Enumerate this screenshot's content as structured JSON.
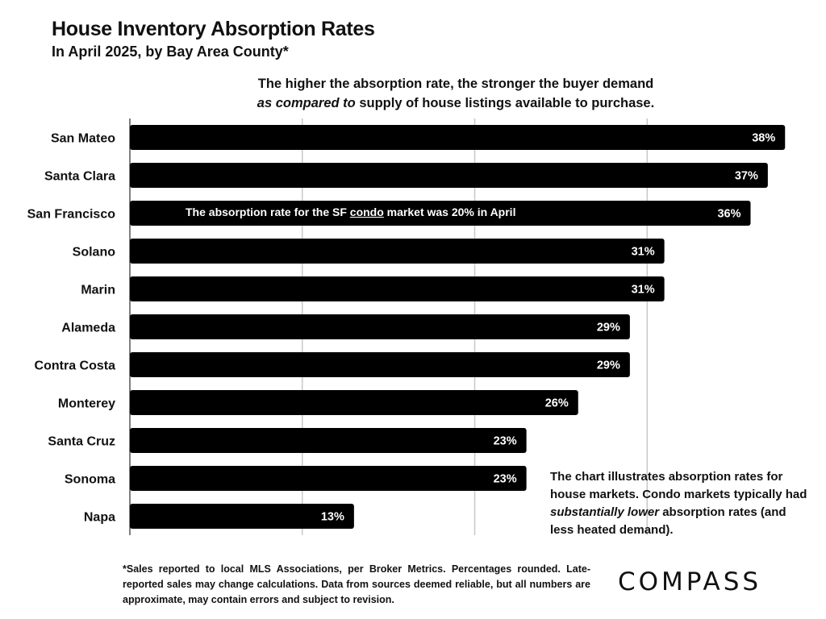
{
  "header": {
    "title": "House Inventory Absorption Rates",
    "subtitle": "In April 2025, by Bay Area County*",
    "note_line1": "The higher the absorption rate, the stronger the buyer demand",
    "note_line2_em": "as compared to",
    "note_line2_rest": " supply of house listings available to purchase."
  },
  "annotations": {
    "sf_pre": "The absorption rate for the SF ",
    "sf_underlined": "condo",
    "sf_post": " market was 20% in April",
    "side_pre": "The chart illustrates absorption rates for house markets. Condo markets typically had ",
    "side_em": "substantially lower",
    "side_post": " absorption rates (and less heated demand)."
  },
  "footnote": "*Sales reported to local MLS Associations, per Broker Metrics. Percentages rounded. Late-reported sales may change calculations. Data from sources deemed reliable, but all numbers are approximate, may contain errors and subject to revision.",
  "logo": "COMPASS",
  "colors": {
    "bar": "#000000",
    "grid": "#c8c8c8",
    "text": "#111111"
  },
  "chart_data": {
    "type": "bar",
    "orientation": "horizontal",
    "categories": [
      "San Mateo",
      "Santa Clara",
      "San Francisco",
      "Solano",
      "Marin",
      "Alameda",
      "Contra Costa",
      "Monterey",
      "Santa Cruz",
      "Sonoma",
      "Napa"
    ],
    "values": [
      38,
      37,
      36,
      31,
      31,
      29,
      29,
      26,
      23,
      23,
      13
    ],
    "value_labels": [
      "38%",
      "37%",
      "36%",
      "31%",
      "31%",
      "29%",
      "29%",
      "26%",
      "23%",
      "23%",
      "13%"
    ],
    "xlim": [
      0,
      40
    ],
    "vertical_gridlines_at": [
      10,
      20,
      30
    ],
    "grid": true,
    "legend": "none"
  }
}
